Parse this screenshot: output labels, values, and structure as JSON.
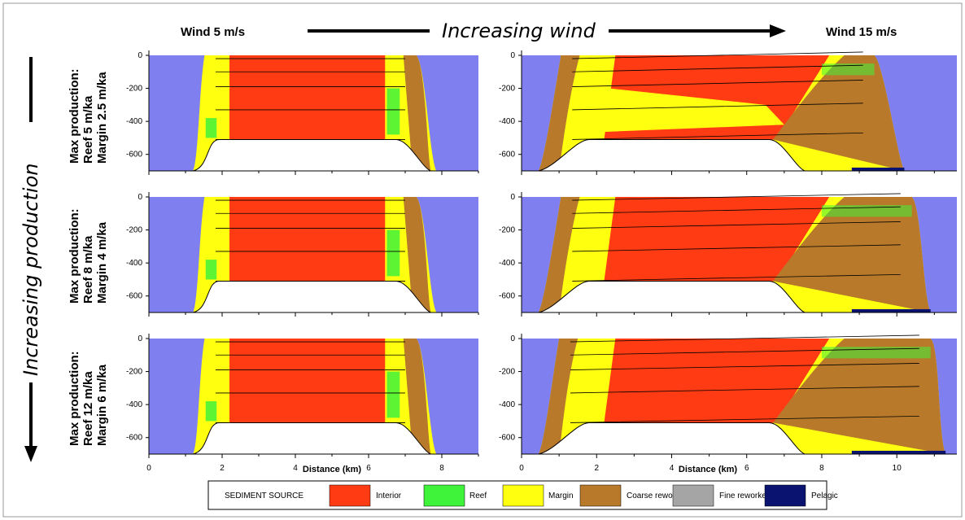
{
  "header": {
    "wind_low": "Wind 5 m/s",
    "wind_high": "Wind 15 m/s",
    "increasing_wind": "Increasing wind",
    "increasing_production": "Increasing production"
  },
  "rows": [
    {
      "line1": "Max production:",
      "line2": "Reef 5 m/ka",
      "line3": "Margin 2.5 m/ka"
    },
    {
      "line1": "Max production:",
      "line2": "Reef 8 m/ka",
      "line3": "Margin 4 m/ka"
    },
    {
      "line1": "Max production:",
      "line2": "Reef 12 m/ka",
      "line3": "Margin 6 m/ka"
    }
  ],
  "axes": {
    "depth_ticks": [
      "0",
      "-200",
      "-400",
      "-600"
    ],
    "x_ticks_left": [
      "0",
      "2",
      "4",
      "6",
      "8"
    ],
    "x_ticks_right": [
      "0",
      "2",
      "4",
      "6",
      "8",
      "10"
    ],
    "xlabel": "Distance (km)"
  },
  "legend": {
    "title": "SEDIMENT SOURCE",
    "items": [
      {
        "label": "Interior",
        "color": "#ff3b14"
      },
      {
        "label": "Reef",
        "color": "#3ff23a"
      },
      {
        "label": "Margin",
        "color": "#ffff10"
      },
      {
        "label": "Coarse reworked",
        "color": "#b87a2a"
      },
      {
        "label": "Fine reworked",
        "color": "#a5a5a5"
      },
      {
        "label": "Pelagic",
        "color": "#0b1370"
      }
    ]
  },
  "colors": {
    "water": "#7f7fef",
    "basement": "#ffffff"
  }
}
